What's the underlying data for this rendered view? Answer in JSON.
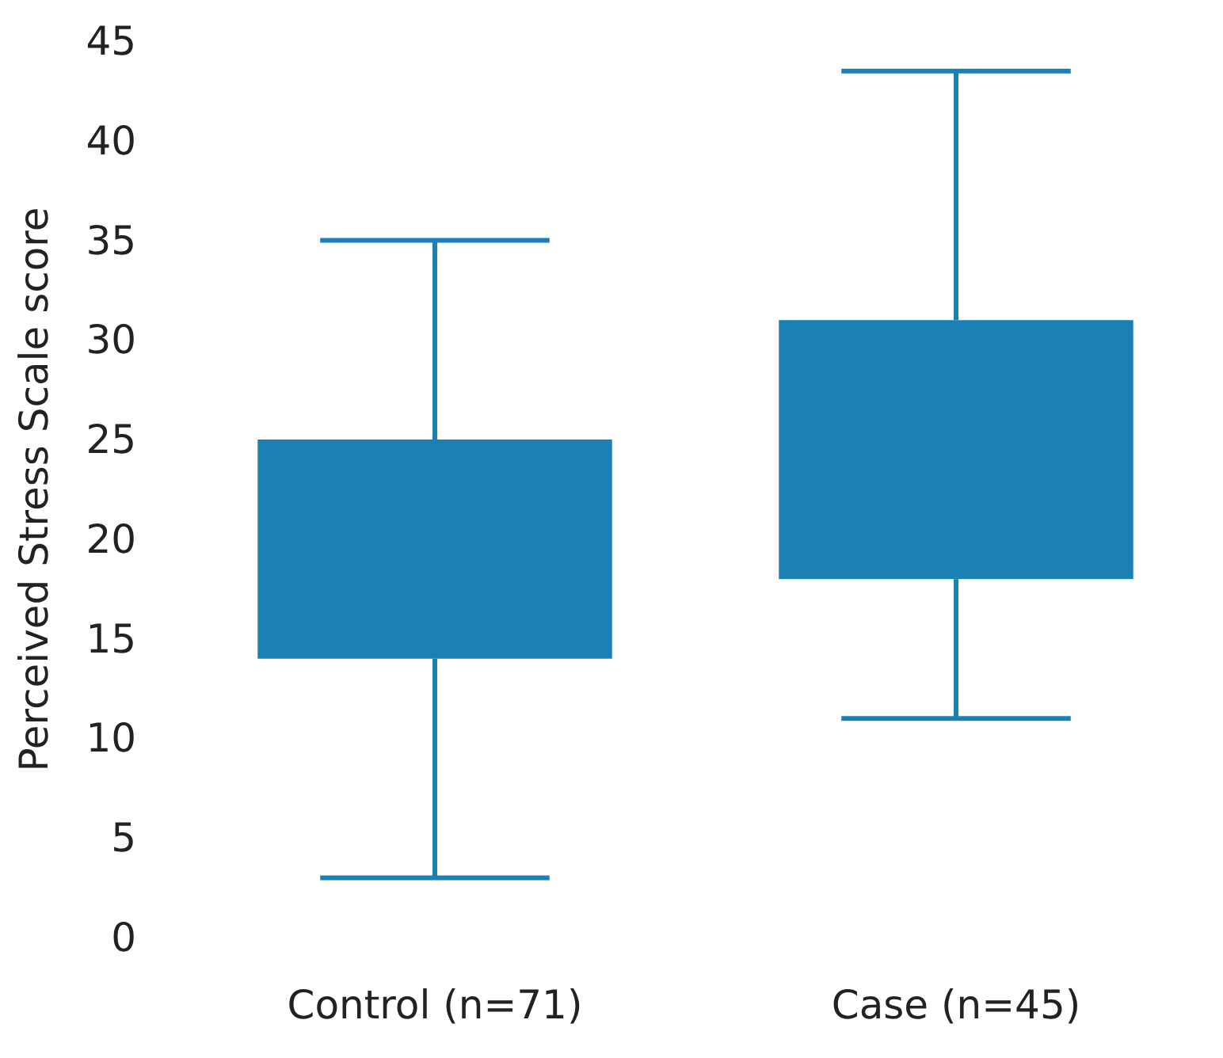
{
  "chart_data": {
    "type": "box",
    "ylabel": "Perceived Stress Scale score",
    "categories": [
      "Control (n=71)",
      "Case (n=45)"
    ],
    "series": [
      {
        "color": "#1b80b4",
        "boxes": [
          {
            "low": 3,
            "q1": 14,
            "median": null,
            "q3": 25,
            "high": 35
          },
          {
            "low": 11,
            "q1": 18,
            "median": null,
            "q3": 31,
            "high": 43.5
          }
        ]
      }
    ],
    "ylim": [
      0,
      45
    ],
    "yticks": [
      0,
      5,
      10,
      15,
      20,
      25,
      30,
      35,
      40,
      45
    ],
    "grid": false
  }
}
